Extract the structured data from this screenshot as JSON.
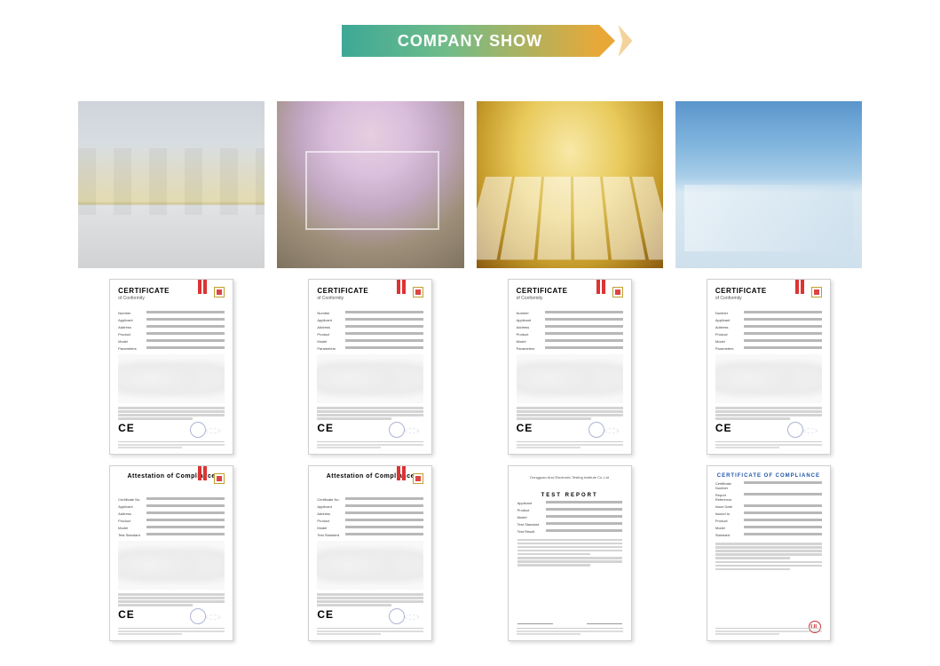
{
  "banner": {
    "text": "COMPANY SHOW"
  },
  "photos": [
    {
      "name": "factory-floor-photo",
      "bg_class": "p1"
    },
    {
      "name": "grow-light-lab-photo",
      "bg_class": "p2"
    },
    {
      "name": "led-panel-testing-photo",
      "bg_class": "p3"
    },
    {
      "name": "office-showroom-photo",
      "bg_class": "p4"
    }
  ],
  "certificates_row1": [
    {
      "title": "CERTIFICATE",
      "subtitle": "of Conformity",
      "fields": [
        "Number",
        "Applicant",
        "Address",
        "Product",
        "Model",
        "Parameters"
      ],
      "ce": "CE",
      "footer_date": "Date of Issue: February 11, 2019"
    },
    {
      "title": "CERTIFICATE",
      "subtitle": "of Conformity",
      "fields": [
        "Number",
        "Applicant",
        "Address",
        "Product",
        "Model",
        "Parameters"
      ],
      "ce": "CE",
      "footer_date": "Date of Issue: August 21, 2019"
    },
    {
      "title": "CERTIFICATE",
      "subtitle": "of Conformity",
      "fields": [
        "Number",
        "Applicant",
        "Address",
        "Product",
        "Model",
        "Parameters"
      ],
      "ce": "CE",
      "footer_date": "Date of Issue: September 23, 2019"
    },
    {
      "title": "CERTIFICATE",
      "subtitle": "of Conformity",
      "fields": [
        "Number",
        "Applicant",
        "Address",
        "Product",
        "Model",
        "Parameters"
      ],
      "ce": "CE",
      "footer_date": "Date of Issue: February 11, 2019"
    }
  ],
  "certificates_row2": [
    {
      "variant": "att",
      "title": "Attestation of Compliance",
      "subtitle": "",
      "fields": [
        "Certificate No.",
        "Applicant",
        "Address",
        "Product",
        "Model",
        "Test Standard"
      ],
      "ce": "CE",
      "footer_date": "Date of Issue: June 19, 2020"
    },
    {
      "variant": "att",
      "title": "Attestation of Compliance",
      "subtitle": "",
      "fields": [
        "Certificate No.",
        "Applicant",
        "Address",
        "Product",
        "Model",
        "Test Standard"
      ],
      "ce": "CE",
      "footer_date": "Date of Issue: June 19, 2020"
    },
    {
      "variant": "report",
      "title": "TEST REPORT",
      "subtitle": "",
      "top_lines": [
        "Dongguan Anci Electronic Testing Institute Co.,Ltd"
      ],
      "fields": [
        "Applicant",
        "Product",
        "Model",
        "Test Standard",
        "Test Result"
      ],
      "sig_left": "Prepared by",
      "sig_right": "Approved by"
    },
    {
      "variant": "ul",
      "title": "CERTIFICATE OF COMPLIANCE",
      "subtitle": "",
      "fields": [
        "Certificate Number",
        "Report Reference",
        "Issue Date",
        "Issued to",
        "Product",
        "Model",
        "Standard"
      ],
      "ul": "UL"
    }
  ],
  "colors": {
    "banner_grad_start": "#3da896",
    "banner_grad_mid": "#6fbc8a",
    "banner_grad_end": "#e8a838",
    "cert_red": "#d33",
    "cert_blue": "#5a6aa8",
    "ul_blue": "#2255aa",
    "ul_red": "#c33"
  }
}
